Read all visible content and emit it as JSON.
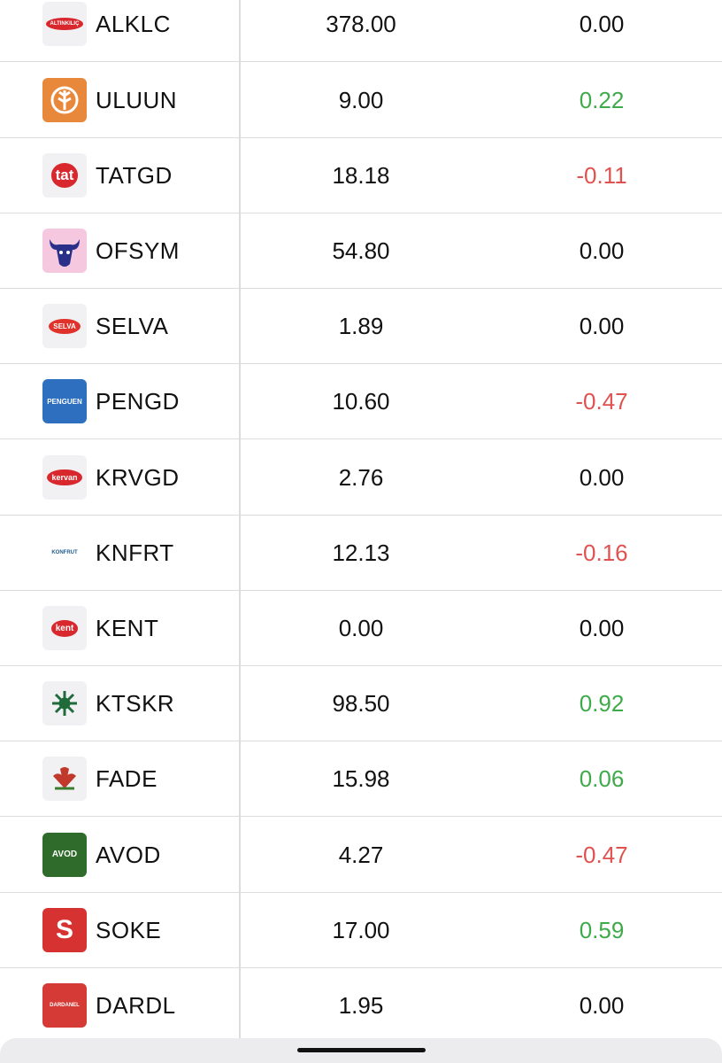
{
  "rows": [
    {
      "logo": "ALTINKILIÇ",
      "ticker": "ALKLC",
      "price": "378.00",
      "change": "0.00"
    },
    {
      "ticker": "ULUUN",
      "price": "9.00",
      "change": "0.22"
    },
    {
      "logo": "tat",
      "ticker": "TATGD",
      "price": "18.18",
      "change": "-0.11"
    },
    {
      "ticker": "OFSYM",
      "price": "54.80",
      "change": "0.00"
    },
    {
      "logo": "SELVA",
      "ticker": "SELVA",
      "price": "1.89",
      "change": "0.00"
    },
    {
      "logo": "PENGUEN",
      "ticker": "PENGD",
      "price": "10.60",
      "change": "-0.47"
    },
    {
      "logo": "kervan",
      "ticker": "KRVGD",
      "price": "2.76",
      "change": "0.00"
    },
    {
      "logo": "KONFRUT",
      "ticker": "KNFRT",
      "price": "12.13",
      "change": "-0.16"
    },
    {
      "logo": "kent",
      "ticker": "KENT",
      "price": "0.00",
      "change": "0.00"
    },
    {
      "ticker": "KTSKR",
      "price": "98.50",
      "change": "0.92"
    },
    {
      "ticker": "FADE",
      "price": "15.98",
      "change": "0.06"
    },
    {
      "logo": "AVOD",
      "ticker": "AVOD",
      "price": "4.27",
      "change": "-0.47"
    },
    {
      "logo": "S",
      "ticker": "SOKE",
      "price": "17.00",
      "change": "0.59"
    },
    {
      "logo": "DARDANEL",
      "ticker": "DARDL",
      "price": "1.95",
      "change": "0.00"
    }
  ]
}
